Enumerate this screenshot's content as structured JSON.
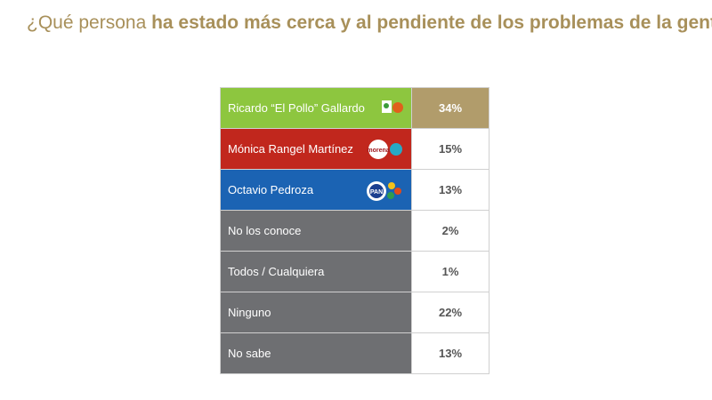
{
  "header": {
    "title": [
      {
        "text": "¿Qué persona ",
        "bold": false
      },
      {
        "text": "ha estado más cerca y al pendiente de los problemas de la gente",
        "bold": true
      },
      {
        "text": "?",
        "bold": false
      }
    ]
  },
  "table": {
    "rows": [
      {
        "name": "Ricardo “El Pollo” Gallardo",
        "value": "34%",
        "color": "#8dc63f",
        "highlight": true,
        "logo": "green"
      },
      {
        "name": "Mónica Rangel Martínez",
        "value": "15%",
        "color": "#c1271d",
        "highlight": false,
        "logo": "morena"
      },
      {
        "name": "Octavio Pedroza",
        "value": "13%",
        "color": "#1b63b3",
        "highlight": false,
        "logo": "pan"
      },
      {
        "name": "No los conoce",
        "value": "2%",
        "color": "#6e6f72",
        "highlight": false
      },
      {
        "name": "Todos / Cualquiera",
        "value": "1%",
        "color": "#6e6f72",
        "highlight": false
      },
      {
        "name": "Ninguno",
        "value": "22%",
        "color": "#6e6f72",
        "highlight": false
      },
      {
        "name": "No sabe",
        "value": "13%",
        "color": "#6e6f72",
        "highlight": false
      }
    ]
  }
}
